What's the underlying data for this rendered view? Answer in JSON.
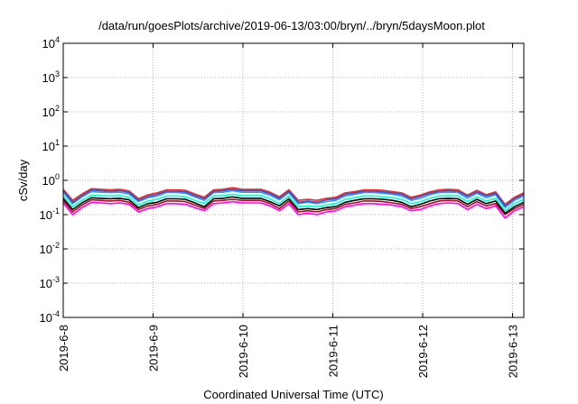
{
  "chart_data": {
    "type": "line",
    "title": "/data/run/goesPlots/archive/2019-06-13/03:00/bryn/../bryn/5daysMoon.plot",
    "xlabel": "Coordinated Universal Time (UTC)",
    "ylabel": "cSv/day",
    "yscale": "log",
    "ylim": [
      0.0001,
      10000
    ],
    "yticks": [
      {
        "base": "10",
        "exp": "-4",
        "value": 0.0001
      },
      {
        "base": "10",
        "exp": "-3",
        "value": 0.001
      },
      {
        "base": "10",
        "exp": "-2",
        "value": 0.01
      },
      {
        "base": "10",
        "exp": "-1",
        "value": 0.1
      },
      {
        "base": "10",
        "exp": "0",
        "value": 1
      },
      {
        "base": "10",
        "exp": "1",
        "value": 10
      },
      {
        "base": "10",
        "exp": "2",
        "value": 100
      },
      {
        "base": "10",
        "exp": "3",
        "value": 1000
      },
      {
        "base": "10",
        "exp": "4",
        "value": 10000
      }
    ],
    "xlim": [
      "2019-06-08",
      "2019-06-13T03:00"
    ],
    "xticks": [
      "2019-6-8",
      "2019-6-9",
      "2019-6-10",
      "2019-6-11",
      "2019-6-12",
      "2019-6-13"
    ],
    "grid": true,
    "series": [
      {
        "color": "#ff00ff",
        "values": [
          0.22,
          0.1,
          0.16,
          0.23,
          0.22,
          0.21,
          0.22,
          0.2,
          0.12,
          0.15,
          0.17,
          0.21,
          0.21,
          0.2,
          0.16,
          0.13,
          0.21,
          0.22,
          0.24,
          0.22,
          0.22,
          0.22,
          0.18,
          0.13,
          0.21,
          0.1,
          0.11,
          0.1,
          0.12,
          0.13,
          0.17,
          0.19,
          0.21,
          0.21,
          0.2,
          0.19,
          0.17,
          0.13,
          0.14,
          0.18,
          0.21,
          0.22,
          0.21,
          0.14,
          0.2,
          0.15,
          0.18,
          0.08,
          0.13,
          0.17
        ]
      },
      {
        "color": "#b8001e",
        "values": [
          0.26,
          0.12,
          0.19,
          0.27,
          0.26,
          0.25,
          0.26,
          0.23,
          0.14,
          0.18,
          0.2,
          0.25,
          0.25,
          0.24,
          0.19,
          0.15,
          0.25,
          0.26,
          0.28,
          0.26,
          0.26,
          0.26,
          0.21,
          0.15,
          0.25,
          0.12,
          0.13,
          0.12,
          0.14,
          0.15,
          0.2,
          0.22,
          0.25,
          0.25,
          0.24,
          0.22,
          0.2,
          0.15,
          0.17,
          0.21,
          0.25,
          0.26,
          0.25,
          0.17,
          0.24,
          0.18,
          0.21,
          0.1,
          0.15,
          0.2
        ]
      },
      {
        "color": "#000000",
        "values": [
          0.3,
          0.14,
          0.22,
          0.31,
          0.3,
          0.29,
          0.3,
          0.27,
          0.16,
          0.21,
          0.23,
          0.29,
          0.29,
          0.28,
          0.22,
          0.17,
          0.29,
          0.3,
          0.33,
          0.3,
          0.3,
          0.3,
          0.24,
          0.18,
          0.29,
          0.14,
          0.15,
          0.14,
          0.16,
          0.17,
          0.23,
          0.26,
          0.29,
          0.29,
          0.28,
          0.26,
          0.23,
          0.17,
          0.2,
          0.25,
          0.29,
          0.3,
          0.29,
          0.2,
          0.28,
          0.21,
          0.25,
          0.11,
          0.17,
          0.23
        ]
      },
      {
        "color": "#00ffcc",
        "values": [
          0.36,
          0.17,
          0.26,
          0.37,
          0.36,
          0.35,
          0.36,
          0.32,
          0.19,
          0.25,
          0.28,
          0.35,
          0.35,
          0.33,
          0.26,
          0.21,
          0.35,
          0.36,
          0.39,
          0.36,
          0.36,
          0.36,
          0.29,
          0.21,
          0.35,
          0.17,
          0.18,
          0.17,
          0.19,
          0.21,
          0.28,
          0.31,
          0.35,
          0.35,
          0.33,
          0.31,
          0.28,
          0.21,
          0.24,
          0.3,
          0.35,
          0.36,
          0.35,
          0.24,
          0.33,
          0.25,
          0.3,
          0.13,
          0.21,
          0.28
        ]
      },
      {
        "color": "#1fa0ff",
        "values": [
          0.45,
          0.21,
          0.33,
          0.47,
          0.45,
          0.44,
          0.45,
          0.4,
          0.24,
          0.31,
          0.35,
          0.44,
          0.44,
          0.42,
          0.33,
          0.26,
          0.44,
          0.45,
          0.5,
          0.45,
          0.45,
          0.45,
          0.37,
          0.27,
          0.44,
          0.21,
          0.23,
          0.21,
          0.24,
          0.26,
          0.35,
          0.39,
          0.44,
          0.44,
          0.42,
          0.39,
          0.35,
          0.26,
          0.3,
          0.38,
          0.44,
          0.45,
          0.44,
          0.3,
          0.42,
          0.31,
          0.38,
          0.16,
          0.26,
          0.35
        ]
      },
      {
        "color": "#ff2222",
        "values": [
          0.55,
          0.26,
          0.4,
          0.57,
          0.55,
          0.53,
          0.55,
          0.49,
          0.29,
          0.38,
          0.43,
          0.53,
          0.53,
          0.51,
          0.4,
          0.32,
          0.53,
          0.55,
          0.61,
          0.55,
          0.55,
          0.55,
          0.45,
          0.33,
          0.53,
          0.26,
          0.28,
          0.26,
          0.3,
          0.32,
          0.43,
          0.47,
          0.53,
          0.53,
          0.51,
          0.47,
          0.43,
          0.32,
          0.37,
          0.46,
          0.53,
          0.55,
          0.53,
          0.37,
          0.51,
          0.38,
          0.46,
          0.2,
          0.32,
          0.43
        ]
      },
      {
        "color": "#3b4fc8",
        "values": [
          0.5,
          0.23,
          0.36,
          0.52,
          0.5,
          0.48,
          0.5,
          0.44,
          0.26,
          0.34,
          0.39,
          0.48,
          0.48,
          0.46,
          0.36,
          0.29,
          0.48,
          0.5,
          0.55,
          0.5,
          0.5,
          0.5,
          0.41,
          0.3,
          0.48,
          0.23,
          0.25,
          0.23,
          0.27,
          0.29,
          0.39,
          0.43,
          0.48,
          0.48,
          0.46,
          0.43,
          0.39,
          0.29,
          0.34,
          0.42,
          0.48,
          0.5,
          0.48,
          0.34,
          0.46,
          0.35,
          0.42,
          0.18,
          0.29,
          0.39
        ]
      }
    ]
  }
}
